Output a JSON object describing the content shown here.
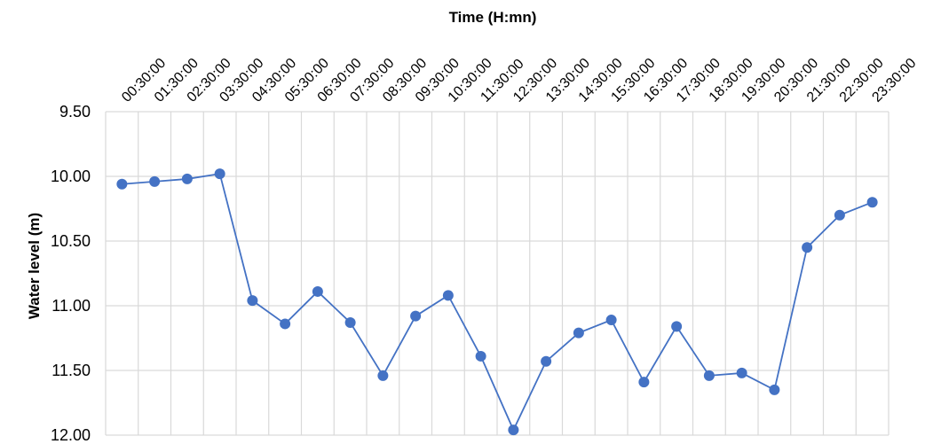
{
  "chart_data": {
    "type": "line",
    "title": "Time (H:mn)",
    "xlabel": "Time (H:mn)",
    "ylabel": "Water level (m)",
    "y_axis_inverted": true,
    "ylim": [
      9.5,
      12.0
    ],
    "y_ticks": [
      "9.50",
      "10.00",
      "10.50",
      "11.00",
      "11.50",
      "12.00"
    ],
    "x_axis_position": "top",
    "grid": true,
    "legend": "none",
    "categories": [
      "00:30:00",
      "01:30:00",
      "02:30:00",
      "03:30:00",
      "04:30:00",
      "05:30:00",
      "06:30:00",
      "07:30:00",
      "08:30:00",
      "09:30:00",
      "10:30:00",
      "11:30:00",
      "12:30:00",
      "13:30:00",
      "14:30:00",
      "15:30:00",
      "16:30:00",
      "17:30:00",
      "18:30:00",
      "19:30:00",
      "20:30:00",
      "21:30:00",
      "22:30:00",
      "23:30:00"
    ],
    "series": [
      {
        "values": [
          10.06,
          10.04,
          10.02,
          9.98,
          10.96,
          11.14,
          10.89,
          11.13,
          11.54,
          11.08,
          10.92,
          11.39,
          11.96,
          11.43,
          11.21,
          11.11,
          11.59,
          11.16,
          11.54,
          11.52,
          11.65,
          10.55,
          10.3,
          10.2
        ],
        "color": "#4472c4"
      }
    ]
  }
}
